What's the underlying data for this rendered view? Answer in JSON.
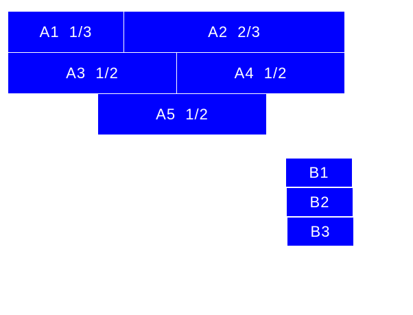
{
  "colors": {
    "box": "#0000ff",
    "text": "#ffffff"
  },
  "group_a": [
    "A1  1/3",
    "A2  2/3",
    "A3  1/2",
    "A4  1/2",
    "A5  1/2"
  ],
  "group_b": [
    "B1",
    "B2",
    "B3"
  ]
}
